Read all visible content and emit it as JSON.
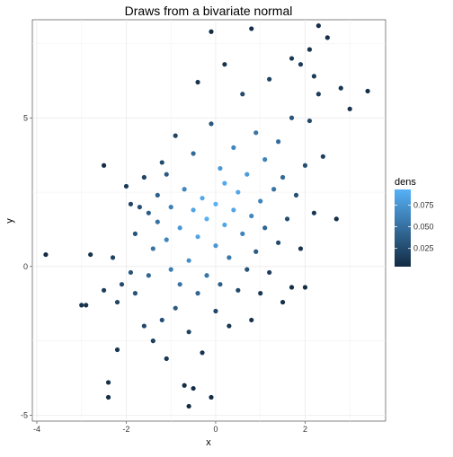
{
  "chart_data": {
    "type": "scatter",
    "title": "Draws from a bivariate normal",
    "xlabel": "x",
    "ylabel": "y",
    "xlim": [
      -4.1,
      3.8
    ],
    "ylim": [
      -5.2,
      8.3
    ],
    "x_ticks": [
      -4,
      -2,
      0,
      2
    ],
    "x_tick_labels": [
      "-4",
      "-2",
      "0",
      "2"
    ],
    "y_ticks": [
      -5,
      0,
      5
    ],
    "y_tick_labels": [
      "-5",
      "0",
      "5"
    ],
    "grid": true,
    "legend": {
      "title": "dens",
      "placement": "right",
      "type": "colorbar",
      "range": [
        0.004,
        0.093
      ],
      "ticks": [
        0.025,
        0.05,
        0.075
      ],
      "tick_labels": [
        "0.025",
        "0.050",
        "0.075"
      ],
      "low_color": "#132B43",
      "high_color": "#56B1F7"
    },
    "points": [
      [
        -3.8,
        0.4
      ],
      [
        -3.0,
        -1.3
      ],
      [
        -2.9,
        -1.3
      ],
      [
        -2.8,
        0.4
      ],
      [
        -2.5,
        -0.8
      ],
      [
        -2.5,
        3.4
      ],
      [
        -2.4,
        -3.9
      ],
      [
        -2.4,
        -4.4
      ],
      [
        -2.3,
        0.3
      ],
      [
        -2.2,
        -2.8
      ],
      [
        -2.2,
        -1.2
      ],
      [
        -2.1,
        -0.6
      ],
      [
        -2.0,
        2.7
      ],
      [
        -1.9,
        -0.2
      ],
      [
        -1.8,
        -0.9
      ],
      [
        -1.8,
        1.1
      ],
      [
        -1.7,
        2.0
      ],
      [
        -1.6,
        3.0
      ],
      [
        -1.5,
        -0.3
      ],
      [
        -1.4,
        -2.5
      ],
      [
        -1.4,
        0.6
      ],
      [
        -1.3,
        1.5
      ],
      [
        -1.3,
        2.4
      ],
      [
        -1.2,
        -1.8
      ],
      [
        -1.2,
        3.5
      ],
      [
        -1.1,
        -3.1
      ],
      [
        -1.1,
        0.9
      ],
      [
        -1.0,
        -0.1
      ],
      [
        -1.0,
        2.0
      ],
      [
        -0.9,
        -1.4
      ],
      [
        -0.9,
        4.4
      ],
      [
        -0.8,
        -0.6
      ],
      [
        -0.8,
        1.3
      ],
      [
        -0.7,
        -4.0
      ],
      [
        -0.7,
        2.6
      ],
      [
        -0.6,
        -2.2
      ],
      [
        -0.6,
        0.2
      ],
      [
        -0.5,
        1.9
      ],
      [
        -0.5,
        3.8
      ],
      [
        -0.4,
        -0.9
      ],
      [
        -0.4,
        1.0
      ],
      [
        -0.3,
        -2.9
      ],
      [
        -0.3,
        2.3
      ],
      [
        -0.2,
        -0.3
      ],
      [
        -0.2,
        1.6
      ],
      [
        -0.1,
        4.8
      ],
      [
        -0.1,
        -4.4
      ],
      [
        0.0,
        -1.5
      ],
      [
        0.0,
        0.7
      ],
      [
        0.0,
        2.1
      ],
      [
        0.1,
        3.3
      ],
      [
        0.1,
        -0.6
      ],
      [
        0.2,
        1.4
      ],
      [
        0.2,
        2.8
      ],
      [
        0.3,
        -2.0
      ],
      [
        0.3,
        0.3
      ],
      [
        0.4,
        1.9
      ],
      [
        0.4,
        4.0
      ],
      [
        0.5,
        -0.8
      ],
      [
        0.5,
        2.5
      ],
      [
        0.6,
        1.1
      ],
      [
        0.6,
        5.8
      ],
      [
        0.7,
        -0.1
      ],
      [
        0.7,
        3.1
      ],
      [
        0.8,
        -1.8
      ],
      [
        0.8,
        1.7
      ],
      [
        0.9,
        4.5
      ],
      [
        0.9,
        0.5
      ],
      [
        1.0,
        2.2
      ],
      [
        1.0,
        -0.9
      ],
      [
        1.1,
        3.6
      ],
      [
        1.1,
        1.3
      ],
      [
        1.2,
        6.3
      ],
      [
        1.2,
        -0.2
      ],
      [
        1.3,
        2.6
      ],
      [
        1.4,
        0.8
      ],
      [
        1.4,
        4.2
      ],
      [
        1.5,
        -1.2
      ],
      [
        1.5,
        3.0
      ],
      [
        1.6,
        1.6
      ],
      [
        1.7,
        5.0
      ],
      [
        1.7,
        -0.7
      ],
      [
        1.8,
        2.4
      ],
      [
        1.9,
        0.6
      ],
      [
        1.9,
        6.8
      ],
      [
        2.0,
        3.4
      ],
      [
        2.0,
        -0.7
      ],
      [
        2.1,
        4.9
      ],
      [
        2.1,
        7.3
      ],
      [
        2.2,
        1.8
      ],
      [
        2.3,
        5.8
      ],
      [
        2.3,
        8.1
      ],
      [
        2.4,
        3.7
      ],
      [
        2.5,
        7.7
      ],
      [
        2.7,
        1.6
      ],
      [
        2.8,
        6.0
      ],
      [
        3.0,
        5.3
      ],
      [
        3.4,
        5.9
      ],
      [
        -0.6,
        -4.7
      ],
      [
        -0.5,
        -4.1
      ],
      [
        -1.6,
        -2.0
      ],
      [
        -1.5,
        1.8
      ],
      [
        -1.9,
        2.1
      ],
      [
        -1.1,
        3.1
      ],
      [
        0.8,
        8.0
      ],
      [
        -0.1,
        7.9
      ],
      [
        0.2,
        6.8
      ],
      [
        -0.4,
        6.2
      ],
      [
        1.7,
        7.0
      ],
      [
        2.2,
        6.4
      ]
    ]
  }
}
